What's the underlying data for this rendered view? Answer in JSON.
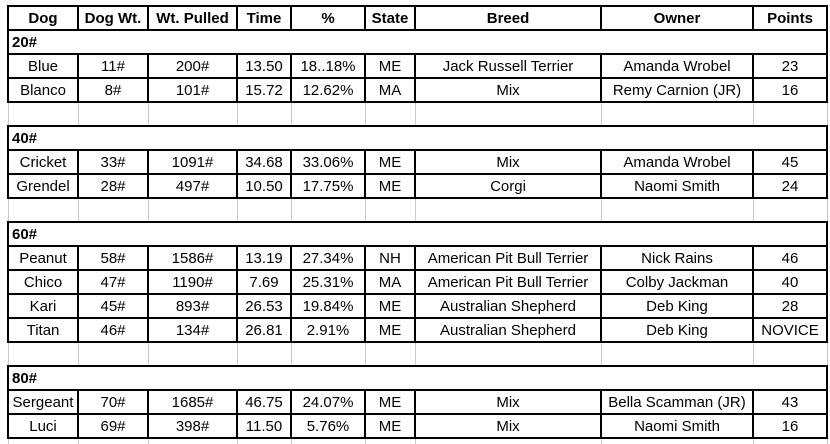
{
  "table": {
    "columns": [
      "Dog",
      "Dog Wt.",
      "Wt. Pulled",
      "Time",
      "%",
      "State",
      "Breed",
      "Owner",
      "Points"
    ],
    "sections": [
      {
        "label": "20#",
        "rows": [
          [
            "Blue",
            "11#",
            "200#",
            "13.50",
            "18..18%",
            "ME",
            "Jack Russell Terrier",
            "Amanda Wrobel",
            "23"
          ],
          [
            "Blanco",
            "8#",
            "101#",
            "15.72",
            "12.62%",
            "MA",
            "Mix",
            "Remy Carnion (JR)",
            "16"
          ]
        ]
      },
      {
        "label": "40#",
        "rows": [
          [
            "Cricket",
            "33#",
            "1091#",
            "34.68",
            "33.06%",
            "ME",
            "Mix",
            "Amanda Wrobel",
            "45"
          ],
          [
            "Grendel",
            "28#",
            "497#",
            "10.50",
            "17.75%",
            "ME",
            "Corgi",
            "Naomi Smith",
            "24"
          ]
        ]
      },
      {
        "label": "60#",
        "rows": [
          [
            "Peanut",
            "58#",
            "1586#",
            "13.19",
            "27.34%",
            "NH",
            "American Pit Bull Terrier",
            "Nick Rains",
            "46"
          ],
          [
            "Chico",
            "47#",
            "1190#",
            "7.69",
            "25.31%",
            "MA",
            "American Pit Bull Terrier",
            "Colby Jackman",
            "40"
          ],
          [
            "Kari",
            "45#",
            "893#",
            "26.53",
            "19.84%",
            "ME",
            "Australian Shepherd",
            "Deb King",
            "28"
          ],
          [
            "Titan",
            "46#",
            "134#",
            "26.81",
            "2.91%",
            "ME",
            "Australian Shepherd",
            "Deb King",
            "NOVICE"
          ]
        ]
      },
      {
        "label": "80#",
        "rows": [
          [
            "Sergeant",
            "70#",
            "1685#",
            "46.75",
            "24.07%",
            "ME",
            "Mix",
            "Bella Scamman (JR)",
            "43"
          ],
          [
            "Luci",
            "69#",
            "398#",
            "11.50",
            "5.76%",
            "ME",
            "Mix",
            "Naomi Smith",
            "16"
          ]
        ]
      }
    ]
  },
  "colors": {
    "border": "#000000",
    "gridline": "#c9c9c9",
    "background": "#ffffff",
    "text": "#000000"
  }
}
